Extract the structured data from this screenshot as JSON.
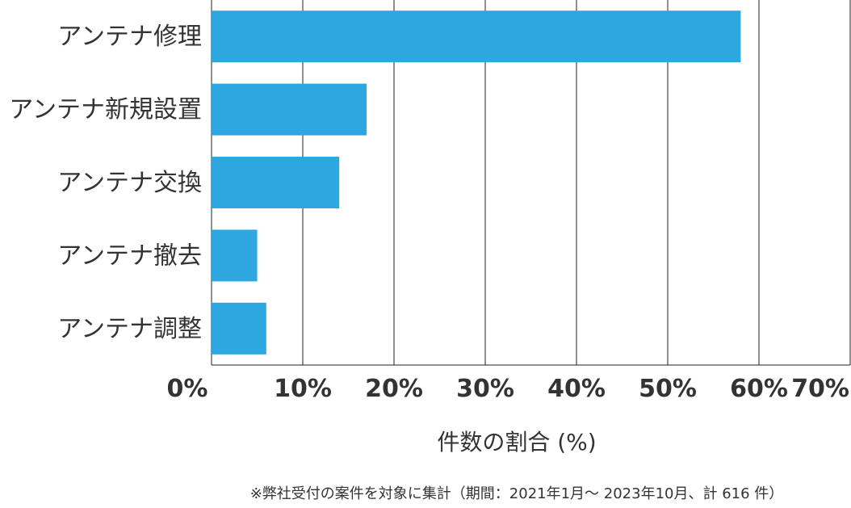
{
  "chart_data": {
    "type": "bar",
    "orientation": "horizontal",
    "categories": [
      "アンテナ修理",
      "アンテナ新規設置",
      "アンテナ交換",
      "アンテナ撤去",
      "アンテナ調整"
    ],
    "values": [
      58.0,
      17.0,
      14.0,
      5.0,
      6.0
    ],
    "xlabel": "件数の割合 (%)",
    "ylabel": "",
    "xlim": [
      0,
      70
    ],
    "xticks": [
      "0%",
      "10%",
      "20%",
      "30%",
      "40%",
      "50%",
      "60%",
      "70%"
    ],
    "grid": true,
    "bar_color": "#2EA7E0",
    "note": "※弊社受付の案件を対象に集計（期間：2021年1月～ 2023年10月、計 616 件）"
  }
}
